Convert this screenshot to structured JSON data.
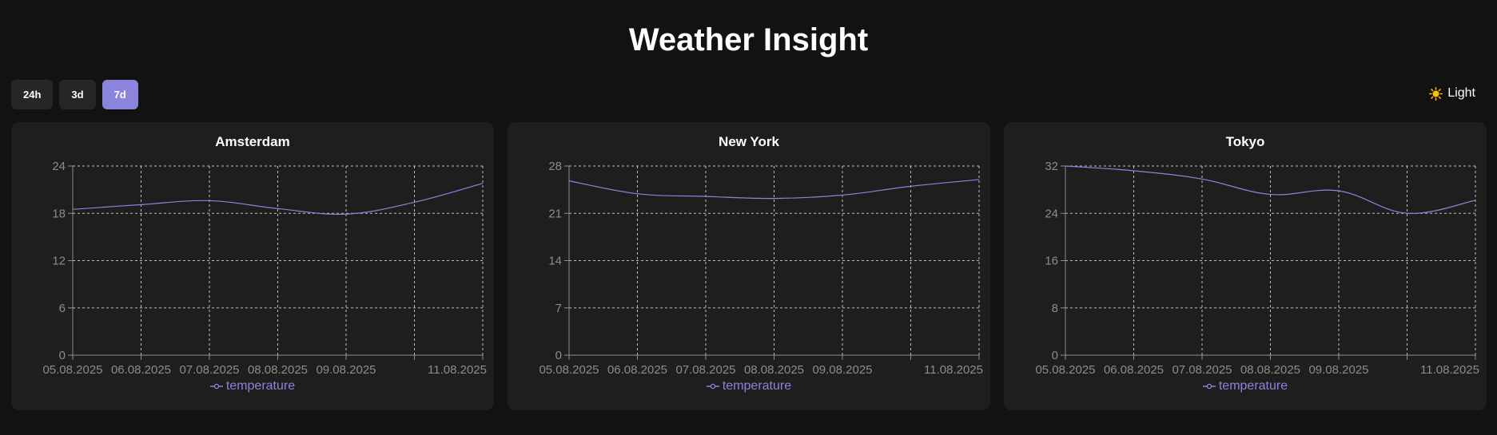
{
  "header": {
    "title": "Weather Insight"
  },
  "toolbar": {
    "ranges": [
      {
        "label": "24h",
        "active": false
      },
      {
        "label": "3d",
        "active": false
      },
      {
        "label": "7d",
        "active": true
      }
    ],
    "theme_label": "Light",
    "theme_icon": "sun-icon"
  },
  "colors": {
    "background": "#121212",
    "card": "#1e1e1e",
    "accent": "#8b84dc",
    "grid": "#bdbdbd",
    "tick_text": "#8c8c8c"
  },
  "chart_data": [
    {
      "type": "line",
      "title": "Amsterdam",
      "x": [
        "05.08.2025",
        "06.08.2025",
        "07.08.2025",
        "08.08.2025",
        "09.08.2025",
        "10.08.2025",
        "11.08.2025"
      ],
      "x_tick_labels": [
        "05.08.2025",
        "06.08.2025",
        "07.08.2025",
        "08.08.2025",
        "09.08.2025",
        "",
        "11.08.2025"
      ],
      "series": [
        {
          "name": "temperature",
          "values": [
            18.5,
            19.1,
            19.6,
            18.6,
            17.9,
            19.4,
            21.8
          ]
        }
      ],
      "ylim": [
        0,
        24
      ],
      "yticks": [
        0,
        6,
        12,
        18,
        24
      ],
      "grid": true,
      "legend": "bottom"
    },
    {
      "type": "line",
      "title": "New York",
      "x": [
        "05.08.2025",
        "06.08.2025",
        "07.08.2025",
        "08.08.2025",
        "09.08.2025",
        "10.08.2025",
        "11.08.2025"
      ],
      "x_tick_labels": [
        "05.08.2025",
        "06.08.2025",
        "07.08.2025",
        "08.08.2025",
        "09.08.2025",
        "",
        "11.08.2025"
      ],
      "series": [
        {
          "name": "temperature",
          "values": [
            25.8,
            23.9,
            23.5,
            23.2,
            23.7,
            25.0,
            26.0
          ]
        }
      ],
      "ylim": [
        0,
        28
      ],
      "yticks": [
        0,
        7,
        14,
        21,
        28
      ],
      "grid": true,
      "legend": "bottom"
    },
    {
      "type": "line",
      "title": "Tokyo",
      "x": [
        "05.08.2025",
        "06.08.2025",
        "07.08.2025",
        "08.08.2025",
        "09.08.2025",
        "10.08.2025",
        "11.08.2025"
      ],
      "x_tick_labels": [
        "05.08.2025",
        "06.08.2025",
        "07.08.2025",
        "08.08.2025",
        "09.08.2025",
        "",
        "11.08.2025"
      ],
      "series": [
        {
          "name": "temperature",
          "values": [
            32.0,
            31.2,
            29.8,
            27.2,
            27.8,
            24.0,
            26.2
          ]
        }
      ],
      "ylim": [
        0,
        32
      ],
      "yticks": [
        0,
        8,
        16,
        24,
        32
      ],
      "grid": true,
      "legend": "bottom"
    }
  ]
}
